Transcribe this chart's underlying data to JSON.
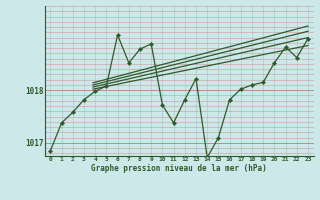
{
  "background_color": "#cde8e8",
  "grid_color_v": "#aacccc",
  "grid_color_h": "#cc9999",
  "line_color": "#2d5a2d",
  "xlabel": "Graphe pression niveau de la mer (hPa)",
  "xlim": [
    -0.5,
    23.5
  ],
  "ylim": [
    1016.75,
    1019.6
  ],
  "yticks": [
    1017,
    1018
  ],
  "xticks": [
    0,
    1,
    2,
    3,
    4,
    5,
    6,
    7,
    8,
    9,
    10,
    11,
    12,
    13,
    14,
    15,
    16,
    17,
    18,
    19,
    20,
    21,
    22,
    23
  ],
  "main_series_x": [
    0,
    1,
    2,
    3,
    4,
    5,
    6,
    7,
    8,
    9,
    10,
    11,
    12,
    13,
    14,
    15,
    16,
    17,
    18,
    19,
    20,
    21,
    22,
    23
  ],
  "main_series_y": [
    1016.85,
    1017.38,
    1017.58,
    1017.82,
    1017.98,
    1018.08,
    1019.05,
    1018.52,
    1018.78,
    1018.88,
    1017.72,
    1017.38,
    1017.82,
    1018.22,
    1016.72,
    1017.1,
    1017.82,
    1018.02,
    1018.1,
    1018.15,
    1018.52,
    1018.82,
    1018.62,
    1018.98
  ],
  "linear_lines": [
    {
      "x0": 3.8,
      "y0": 1018.02,
      "x1": 23,
      "y1": 1018.85
    },
    {
      "x0": 3.8,
      "y0": 1018.06,
      "x1": 23,
      "y1": 1019.0
    },
    {
      "x0": 3.8,
      "y0": 1018.1,
      "x1": 23,
      "y1": 1019.12
    },
    {
      "x0": 3.8,
      "y0": 1018.14,
      "x1": 23,
      "y1": 1019.22
    }
  ]
}
